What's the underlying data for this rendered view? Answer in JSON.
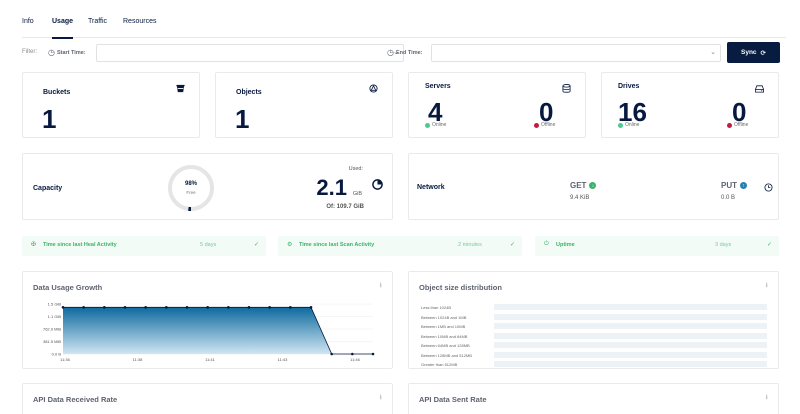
{
  "tabs": [
    {
      "label": "Info",
      "active": false
    },
    {
      "label": "Usage",
      "active": true
    },
    {
      "label": "Traffic",
      "active": false
    },
    {
      "label": "Resources",
      "active": false
    }
  ],
  "filter": {
    "label": "Filter:",
    "start_label": "Start Time:",
    "end_label": "End Time:",
    "start_value": "",
    "end_value": "",
    "sync_label": "Sync"
  },
  "stats": {
    "buckets": {
      "title": "Buckets",
      "value": "1",
      "icon": "bucket-icon"
    },
    "objects": {
      "title": "Objects",
      "value": "1",
      "icon": "objects-icon"
    },
    "servers": {
      "title": "Servers",
      "online": "4",
      "offline": "0",
      "online_label": "Online",
      "offline_label": "Offline",
      "icon": "server-icon"
    },
    "drives": {
      "title": "Drives",
      "online": "16",
      "offline": "0",
      "online_label": "Online",
      "offline_label": "Offline",
      "icon": "drive-icon"
    }
  },
  "capacity": {
    "title": "Capacity",
    "free_percent": "98%",
    "free_label": "Free",
    "used_label": "Used:",
    "used_value": "2.1",
    "used_unit": "GiB",
    "total": "Of: 109.7 GiB",
    "free_fraction": 0.98
  },
  "network": {
    "title": "Network",
    "get_label": "GET",
    "get_value": "9.4 KiB",
    "put_label": "PUT",
    "put_value": "0.0 B"
  },
  "activity": [
    {
      "label": "Time since last Heal Activity",
      "value": "5 days"
    },
    {
      "label": "Time since last Scan Activity",
      "value": "2 minutes"
    },
    {
      "label": "Uptime",
      "value": "3 days"
    }
  ],
  "data_usage": {
    "title": "Data Usage Growth",
    "chart_data": {
      "type": "area",
      "y_ticks": [
        "0.0 B",
        "381.5 MiB",
        "762.9 MiB",
        "1.1 GiB",
        "1.5 GiB"
      ],
      "x_ticks": [
        "11:36",
        "11:38",
        "11:41",
        "11:43",
        "11:46"
      ],
      "series": [
        {
          "values": [
            1.4,
            1.4,
            1.4,
            1.4,
            1.4,
            1.4,
            1.4,
            1.4,
            1.4,
            1.4,
            1.4,
            1.4,
            1.4,
            0.0,
            0.0,
            0.0
          ]
        }
      ],
      "ylim": [
        0,
        1.5
      ]
    }
  },
  "object_size": {
    "title": "Object size distribution",
    "chart_data": {
      "type": "bar",
      "categories": [
        "Less than 1024B",
        "Between 1024B and 1MB",
        "Between 1MB and 10MB",
        "Between 10MB and 64MB",
        "Between 64MB and 128MB",
        "Between 128MB and 512MB",
        "Greater than 512MB"
      ],
      "values": [
        0,
        0,
        0,
        0,
        0,
        0,
        0
      ]
    }
  },
  "api_received": {
    "title": "API Data Received Rate"
  },
  "api_sent": {
    "title": "API Data Sent Rate"
  }
}
